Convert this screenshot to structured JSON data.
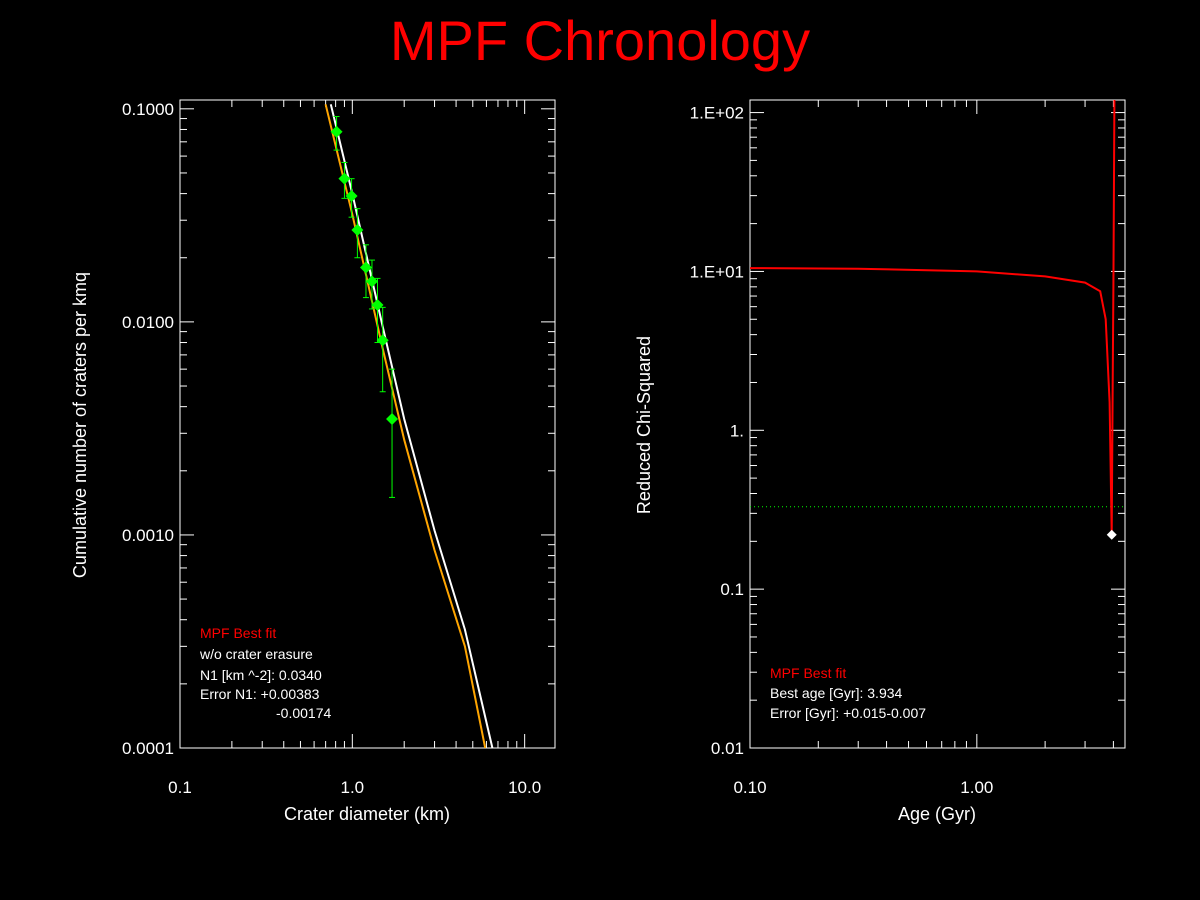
{
  "title": "MPF Chronology",
  "colors": {
    "background": "#000000",
    "title": "#ff0000",
    "axes": "#ffffff",
    "data_points": "#00ff00",
    "white_fit": "#ffffff",
    "orange_fit": "#ffa500",
    "chi_curve": "#ff0000",
    "threshold_line": "#00ff00"
  },
  "chart_data": [
    {
      "type": "scatter",
      "xlabel": "Crater diameter (km)",
      "ylabel": "Cumulative number of craters per kmq",
      "x_scale": "log",
      "y_scale": "log",
      "xlim": [
        0.1,
        15
      ],
      "ylim": [
        0.0001,
        0.11
      ],
      "x_ticks": [
        {
          "value": 0.1,
          "label": "0.1"
        },
        {
          "value": 1.0,
          "label": "1.0"
        },
        {
          "value": 10.0,
          "label": "10.0"
        }
      ],
      "y_ticks": [
        {
          "value": 0.0001,
          "label": "0.0001"
        },
        {
          "value": 0.001,
          "label": "0.0010"
        },
        {
          "value": 0.01,
          "label": "0.0100"
        },
        {
          "value": 0.1,
          "label": "0.1000"
        }
      ],
      "points": [
        {
          "x": 0.81,
          "y": 0.078,
          "err_plus": 0.014,
          "err_minus": 0.014
        },
        {
          "x": 0.9,
          "y": 0.047,
          "err_plus": 0.009,
          "err_minus": 0.009
        },
        {
          "x": 0.99,
          "y": 0.039,
          "err_plus": 0.008,
          "err_minus": 0.008
        },
        {
          "x": 1.07,
          "y": 0.027,
          "err_plus": 0.007,
          "err_minus": 0.007
        },
        {
          "x": 1.2,
          "y": 0.018,
          "err_plus": 0.005,
          "err_minus": 0.005
        },
        {
          "x": 1.3,
          "y": 0.0155,
          "err_plus": 0.004,
          "err_minus": 0.004
        },
        {
          "x": 1.4,
          "y": 0.012,
          "err_plus": 0.004,
          "err_minus": 0.004
        },
        {
          "x": 1.5,
          "y": 0.0082,
          "err_plus": 0.0035,
          "err_minus": 0.0035
        },
        {
          "x": 1.7,
          "y": 0.0035,
          "err_plus": 0.0025,
          "err_minus": 0.002
        }
      ],
      "curves": [
        {
          "color_key": "white_fit",
          "points": [
            [
              0.75,
              0.105
            ],
            [
              1.0,
              0.04
            ],
            [
              1.5,
              0.0095
            ],
            [
              2.0,
              0.0035
            ],
            [
              3.0,
              0.00105
            ],
            [
              4.5,
              0.00036
            ],
            [
              6.5,
              0.0001
            ]
          ]
        },
        {
          "color_key": "orange_fit",
          "points": [
            [
              0.7,
              0.105
            ],
            [
              1.0,
              0.032
            ],
            [
              1.5,
              0.0075
            ],
            [
              2.0,
              0.0028
            ],
            [
              3.0,
              0.00085
            ],
            [
              4.5,
              0.0003
            ],
            [
              5.9,
              0.0001
            ]
          ]
        }
      ],
      "legend": {
        "heading": "MPF Best fit",
        "lines": [
          "w/o crater erasure",
          "N1 [km ^-2]: 0.0340",
          "Error N1: +0.00383",
          "-0.00174"
        ]
      }
    },
    {
      "type": "line",
      "xlabel": "Age (Gyr)",
      "ylabel": "Reduced Chi-Squared",
      "x_scale": "log",
      "y_scale": "log",
      "xlim": [
        0.1,
        4.5
      ],
      "ylim": [
        0.01,
        120
      ],
      "x_ticks": [
        {
          "value": 0.1,
          "label": "0.10"
        },
        {
          "value": 1.0,
          "label": "1.00"
        }
      ],
      "y_ticks": [
        {
          "value": 0.01,
          "label": "0.01"
        },
        {
          "value": 0.1,
          "label": "0.1"
        },
        {
          "value": 1,
          "label": "1."
        },
        {
          "value": 10,
          "label": "1.E+01"
        },
        {
          "value": 100,
          "label": "1.E+02"
        }
      ],
      "curve": [
        [
          0.1,
          10.5
        ],
        [
          0.3,
          10.4
        ],
        [
          1.0,
          10.0
        ],
        [
          2.0,
          9.3
        ],
        [
          3.0,
          8.5
        ],
        [
          3.5,
          7.5
        ],
        [
          3.7,
          5.0
        ],
        [
          3.85,
          1.5
        ],
        [
          3.93,
          0.22
        ],
        [
          3.97,
          2.0
        ],
        [
          4.0,
          8.0
        ],
        [
          4.02,
          30.0
        ],
        [
          4.04,
          120
        ]
      ],
      "threshold": 0.33,
      "best_point": {
        "x": 3.934,
        "y": 0.22
      },
      "legend": {
        "heading": "MPF Best fit",
        "lines": [
          "Best age [Gyr]: 3.934",
          "Error [Gyr]: +0.015-0.007"
        ]
      }
    }
  ]
}
